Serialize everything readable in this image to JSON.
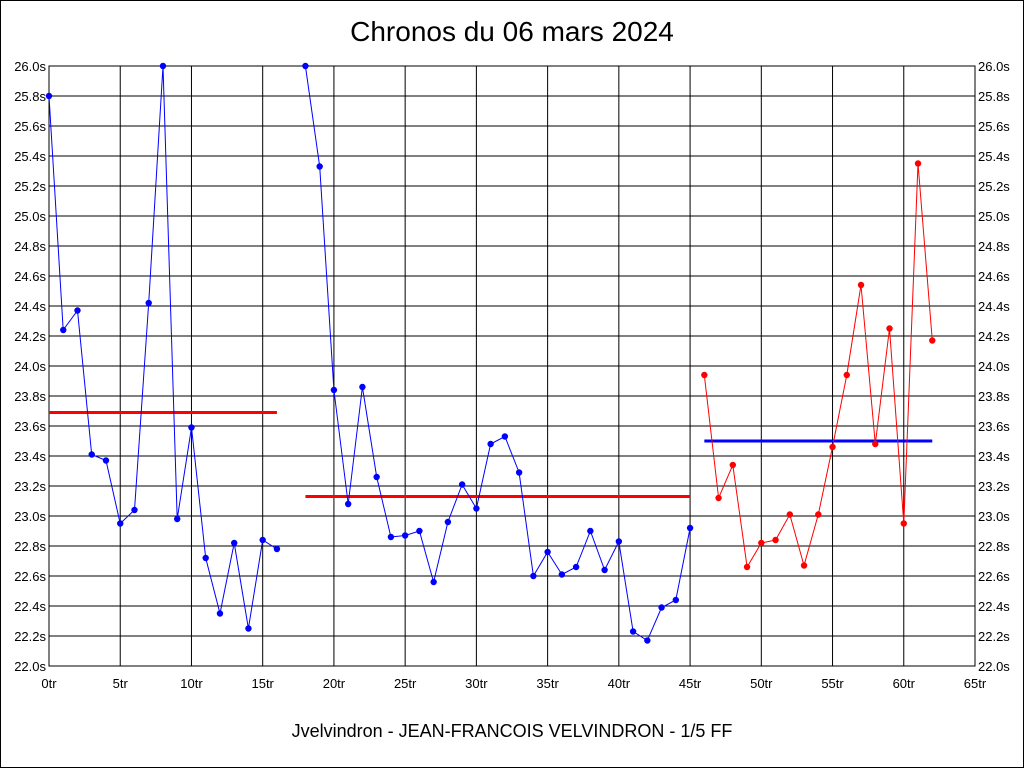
{
  "chart_data": {
    "type": "line",
    "title": "Chronos du 06 mars 2024",
    "footer": "Jvelvindron - JEAN-FRANCOIS VELVINDRON - 1/5 FF",
    "xlabel": "",
    "ylabel": "",
    "xlim": [
      0,
      65
    ],
    "ylim": [
      22.0,
      26.0
    ],
    "grid": true,
    "x_ticks": [
      {
        "value": 0,
        "label": "0tr"
      },
      {
        "value": 5,
        "label": "5tr"
      },
      {
        "value": 10,
        "label": "10tr"
      },
      {
        "value": 15,
        "label": "15tr"
      },
      {
        "value": 20,
        "label": "20tr"
      },
      {
        "value": 25,
        "label": "25tr"
      },
      {
        "value": 30,
        "label": "30tr"
      },
      {
        "value": 35,
        "label": "35tr"
      },
      {
        "value": 40,
        "label": "40tr"
      },
      {
        "value": 45,
        "label": "45tr"
      },
      {
        "value": 50,
        "label": "50tr"
      },
      {
        "value": 55,
        "label": "55tr"
      },
      {
        "value": 60,
        "label": "60tr"
      },
      {
        "value": 65,
        "label": "65tr"
      }
    ],
    "y_ticks": [
      {
        "value": 22.0,
        "label": "22.0s"
      },
      {
        "value": 22.2,
        "label": "22.2s"
      },
      {
        "value": 22.4,
        "label": "22.4s"
      },
      {
        "value": 22.6,
        "label": "22.6s"
      },
      {
        "value": 22.8,
        "label": "22.8s"
      },
      {
        "value": 23.0,
        "label": "23.0s"
      },
      {
        "value": 23.2,
        "label": "23.2s"
      },
      {
        "value": 23.4,
        "label": "23.4s"
      },
      {
        "value": 23.6,
        "label": "23.6s"
      },
      {
        "value": 23.8,
        "label": "23.8s"
      },
      {
        "value": 24.0,
        "label": "24.0s"
      },
      {
        "value": 24.2,
        "label": "24.2s"
      },
      {
        "value": 24.4,
        "label": "24.4s"
      },
      {
        "value": 24.6,
        "label": "24.6s"
      },
      {
        "value": 24.8,
        "label": "24.8s"
      },
      {
        "value": 25.0,
        "label": "25.0s"
      },
      {
        "value": 25.2,
        "label": "25.2s"
      },
      {
        "value": 25.4,
        "label": "25.4s"
      },
      {
        "value": 25.6,
        "label": "25.6s"
      },
      {
        "value": 25.8,
        "label": "25.8s"
      },
      {
        "value": 26.0,
        "label": "26.0s"
      }
    ],
    "series": [
      {
        "color": "#0000ff",
        "points": [
          [
            0,
            25.8
          ],
          [
            1,
            24.24
          ],
          [
            2,
            24.37
          ],
          [
            3,
            23.41
          ],
          [
            4,
            23.37
          ],
          [
            5,
            22.95
          ],
          [
            6,
            23.04
          ],
          [
            7,
            24.42
          ],
          [
            8,
            26.0
          ],
          [
            9,
            22.98
          ],
          [
            10,
            23.59
          ],
          [
            11,
            22.72
          ],
          [
            12,
            22.35
          ],
          [
            13,
            22.82
          ],
          [
            14,
            22.25
          ],
          [
            15,
            22.84
          ],
          [
            16,
            22.78
          ]
        ]
      },
      {
        "color": "#0000ff",
        "points": [
          [
            18,
            26.0
          ],
          [
            19,
            25.33
          ],
          [
            20,
            23.84
          ],
          [
            21,
            23.08
          ],
          [
            22,
            23.86
          ],
          [
            23,
            23.26
          ],
          [
            24,
            22.86
          ],
          [
            25,
            22.87
          ],
          [
            26,
            22.9
          ],
          [
            27,
            22.56
          ],
          [
            28,
            22.96
          ],
          [
            29,
            23.21
          ],
          [
            30,
            23.05
          ],
          [
            31,
            23.48
          ],
          [
            32,
            23.53
          ],
          [
            33,
            23.29
          ],
          [
            34,
            22.6
          ],
          [
            35,
            22.76
          ],
          [
            36,
            22.61
          ],
          [
            37,
            22.66
          ],
          [
            38,
            22.9
          ],
          [
            39,
            22.64
          ],
          [
            40,
            22.83
          ],
          [
            41,
            22.23
          ],
          [
            42,
            22.17
          ],
          [
            43,
            22.39
          ],
          [
            44,
            22.44
          ],
          [
            45,
            22.92
          ]
        ]
      },
      {
        "color": "#ff0000",
        "points": [
          [
            46,
            23.94
          ],
          [
            47,
            23.12
          ],
          [
            48,
            23.34
          ],
          [
            49,
            22.66
          ],
          [
            50,
            22.82
          ],
          [
            51,
            22.84
          ],
          [
            52,
            23.01
          ],
          [
            53,
            22.67
          ],
          [
            54,
            23.01
          ],
          [
            55,
            23.46
          ],
          [
            56,
            23.94
          ],
          [
            57,
            24.54
          ],
          [
            58,
            23.48
          ],
          [
            59,
            24.25
          ],
          [
            60,
            22.95
          ],
          [
            61,
            25.35
          ],
          [
            62,
            24.17
          ]
        ]
      }
    ],
    "average_lines": [
      {
        "x_start": 0,
        "x_end": 16,
        "y": 23.69,
        "color": "#ff0000"
      },
      {
        "x_start": 18,
        "x_end": 45,
        "y": 23.13,
        "color": "#ff0000"
      },
      {
        "x_start": 46,
        "x_end": 62,
        "y": 23.5,
        "color": "#0000ff"
      }
    ]
  }
}
